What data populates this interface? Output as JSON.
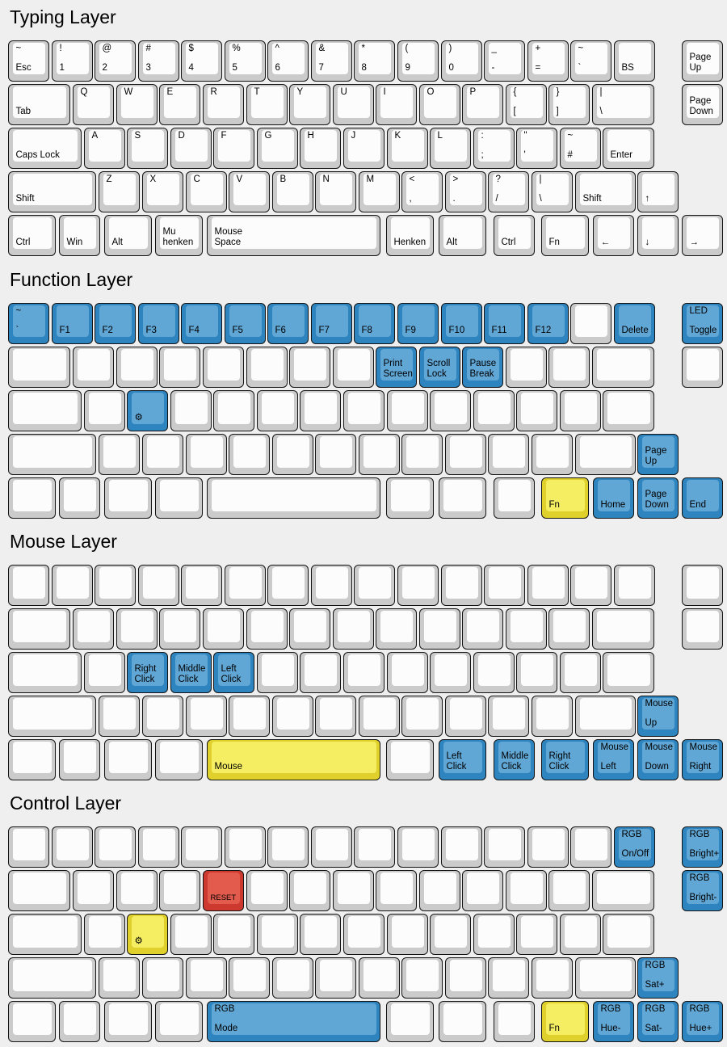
{
  "colors": {
    "blue_base": "#2d84bf",
    "blue_cap": "#61a7d6",
    "yellow_base": "#e0d02c",
    "yellow_cap": "#f5ee63",
    "red_base": "#cd392e",
    "red_cap": "#e25b4d",
    "white_base": "#cbcbcb",
    "white_cap": "#fcfcfc",
    "background": "#efefef",
    "key_border": "#141414",
    "text": "#000000"
  },
  "geometry": [
    [
      [
        0,
        1
      ],
      [
        1,
        1
      ],
      [
        2,
        1
      ],
      [
        3,
        1
      ],
      [
        4,
        1
      ],
      [
        5,
        1
      ],
      [
        6,
        1
      ],
      [
        7,
        1
      ],
      [
        8,
        1
      ],
      [
        9,
        1
      ],
      [
        10,
        1
      ],
      [
        11,
        1
      ],
      [
        12,
        1
      ],
      [
        13,
        1
      ],
      [
        14,
        1
      ],
      [
        15.58,
        1
      ]
    ],
    [
      [
        0,
        1.5
      ],
      [
        1.5,
        1
      ],
      [
        2.5,
        1
      ],
      [
        3.5,
        1
      ],
      [
        4.5,
        1
      ],
      [
        5.5,
        1
      ],
      [
        6.5,
        1
      ],
      [
        7.5,
        1
      ],
      [
        8.5,
        1
      ],
      [
        9.5,
        1
      ],
      [
        10.5,
        1
      ],
      [
        11.5,
        1
      ],
      [
        12.5,
        1
      ],
      [
        13.5,
        1.5
      ],
      [
        15.58,
        1
      ]
    ],
    [
      [
        0,
        1.75
      ],
      [
        1.75,
        1
      ],
      [
        2.75,
        1
      ],
      [
        3.75,
        1
      ],
      [
        4.75,
        1
      ],
      [
        5.75,
        1
      ],
      [
        6.75,
        1
      ],
      [
        7.75,
        1
      ],
      [
        8.75,
        1
      ],
      [
        9.75,
        1
      ],
      [
        10.75,
        1
      ],
      [
        11.75,
        1
      ],
      [
        12.75,
        1
      ],
      [
        13.75,
        1.25
      ]
    ],
    [
      [
        0,
        2.1
      ],
      [
        2.1,
        1
      ],
      [
        3.1,
        1
      ],
      [
        4.1,
        1
      ],
      [
        5.1,
        1
      ],
      [
        6.1,
        1
      ],
      [
        7.1,
        1
      ],
      [
        8.1,
        1
      ],
      [
        9.1,
        1
      ],
      [
        10.1,
        1
      ],
      [
        11.1,
        1
      ],
      [
        12.1,
        1
      ],
      [
        13.1,
        1.45
      ],
      [
        14.55,
        1
      ]
    ],
    [
      [
        0,
        1.15
      ],
      [
        1.18,
        1
      ],
      [
        2.22,
        1.15
      ],
      [
        3.4,
        1.16
      ],
      [
        4.6,
        4.07
      ],
      [
        8.74,
        1.16
      ],
      [
        9.95,
        1.16
      ],
      [
        11.22,
        1
      ],
      [
        12.32,
        1.15
      ],
      [
        13.52,
        1
      ],
      [
        14.55,
        1
      ],
      [
        15.58,
        1
      ]
    ]
  ],
  "layers": [
    {
      "title": "Typing Layer",
      "rows": [
        [
          {
            "t": "~",
            "b": "Esc"
          },
          {
            "t": "!",
            "b": "1"
          },
          {
            "t": "@",
            "b": "2"
          },
          {
            "t": "#",
            "b": "3"
          },
          {
            "t": "$",
            "b": "4"
          },
          {
            "t": "%",
            "b": "5"
          },
          {
            "t": "^",
            "b": "6"
          },
          {
            "t": "&",
            "b": "7"
          },
          {
            "t": "*",
            "b": "8"
          },
          {
            "t": "(",
            "b": "9"
          },
          {
            "t": ")",
            "b": "0"
          },
          {
            "t": "_",
            "b": "-"
          },
          {
            "t": "+",
            "b": "="
          },
          {
            "t": "~",
            "b": "`"
          },
          {
            "b": "BS"
          },
          {
            "b": "Page\nUp"
          }
        ],
        [
          {
            "b": "Tab"
          },
          {
            "t": "Q"
          },
          {
            "t": "W"
          },
          {
            "t": "E"
          },
          {
            "t": "R"
          },
          {
            "t": "T"
          },
          {
            "t": "Y"
          },
          {
            "t": "U"
          },
          {
            "t": "I"
          },
          {
            "t": "O"
          },
          {
            "t": "P"
          },
          {
            "t": "{",
            "b": "["
          },
          {
            "t": "}",
            "b": "]"
          },
          {
            "t": "|",
            "b": "\\"
          },
          {
            "b": "Page\nDown"
          }
        ],
        [
          {
            "b": "Caps Lock"
          },
          {
            "t": "A"
          },
          {
            "t": "S"
          },
          {
            "t": "D"
          },
          {
            "t": "F"
          },
          {
            "t": "G"
          },
          {
            "t": "H"
          },
          {
            "t": "J"
          },
          {
            "t": "K"
          },
          {
            "t": "L"
          },
          {
            "t": ":",
            "b": ";"
          },
          {
            "t": "\"",
            "b": "'"
          },
          {
            "t": "~",
            "b": "#"
          },
          {
            "b": "Enter"
          }
        ],
        [
          {
            "b": "Shift"
          },
          {
            "t": "Z"
          },
          {
            "t": "X"
          },
          {
            "t": "C"
          },
          {
            "t": "V"
          },
          {
            "t": "B"
          },
          {
            "t": "N"
          },
          {
            "t": "M"
          },
          {
            "t": "<",
            "b": ","
          },
          {
            "t": ">",
            "b": "."
          },
          {
            "t": "?",
            "b": "/"
          },
          {
            "t": "|",
            "b": "\\"
          },
          {
            "b": "Shift"
          },
          {
            "b": "↑"
          }
        ],
        [
          {
            "b": "Ctrl"
          },
          {
            "b": "Win"
          },
          {
            "b": "Alt"
          },
          {
            "b": "Mu\nhenken"
          },
          {
            "b": "Mouse\nSpace"
          },
          {
            "b": "Henken"
          },
          {
            "b": "Alt"
          },
          {
            "b": "Ctrl"
          },
          {
            "b": "Fn"
          },
          {
            "b": "←"
          },
          {
            "b": "↓"
          },
          {
            "b": "→"
          }
        ]
      ]
    },
    {
      "title": "Function Layer",
      "rows": [
        [
          {
            "t": "~",
            "b": "`",
            "c": "blue"
          },
          {
            "b": "F1",
            "c": "blue"
          },
          {
            "b": "F2",
            "c": "blue"
          },
          {
            "b": "F3",
            "c": "blue"
          },
          {
            "b": "F4",
            "c": "blue"
          },
          {
            "b": "F5",
            "c": "blue"
          },
          {
            "b": "F6",
            "c": "blue"
          },
          {
            "b": "F7",
            "c": "blue"
          },
          {
            "b": "F8",
            "c": "blue"
          },
          {
            "b": "F9",
            "c": "blue"
          },
          {
            "b": "F10",
            "c": "blue"
          },
          {
            "b": "F11",
            "c": "blue"
          },
          {
            "b": "F12",
            "c": "blue"
          },
          null,
          {
            "b": "Delete",
            "c": "blue"
          },
          {
            "t": "LED",
            "b": "Toggle",
            "c": "blue"
          }
        ],
        [
          null,
          null,
          null,
          null,
          null,
          null,
          null,
          null,
          {
            "b": "Print\nScreen",
            "c": "blue"
          },
          {
            "b": "Scroll\nLock",
            "c": "blue"
          },
          {
            "b": "Pause\nBreak",
            "c": "blue"
          },
          null,
          null,
          null,
          null
        ],
        [
          null,
          null,
          {
            "b": "⚙",
            "c": "blue"
          },
          null,
          null,
          null,
          null,
          null,
          null,
          null,
          null,
          null,
          null,
          null
        ],
        [
          null,
          null,
          null,
          null,
          null,
          null,
          null,
          null,
          null,
          null,
          null,
          null,
          null,
          {
            "b": "Page\nUp",
            "c": "blue"
          }
        ],
        [
          null,
          null,
          null,
          null,
          null,
          null,
          null,
          null,
          {
            "b": "Fn",
            "c": "yellow"
          },
          {
            "b": "Home",
            "c": "blue"
          },
          {
            "b": "Page\nDown",
            "c": "blue"
          },
          {
            "b": "End",
            "c": "blue"
          }
        ]
      ]
    },
    {
      "title": "Mouse Layer",
      "rows": [
        [
          null,
          null,
          null,
          null,
          null,
          null,
          null,
          null,
          null,
          null,
          null,
          null,
          null,
          null,
          null,
          null
        ],
        [
          null,
          null,
          null,
          null,
          null,
          null,
          null,
          null,
          null,
          null,
          null,
          null,
          null,
          null,
          null
        ],
        [
          null,
          null,
          {
            "b": "Right\nClick",
            "c": "blue"
          },
          {
            "b": "Middle\nClick",
            "c": "blue"
          },
          {
            "b": "Left\nClick",
            "c": "blue"
          },
          null,
          null,
          null,
          null,
          null,
          null,
          null,
          null,
          null
        ],
        [
          null,
          null,
          null,
          null,
          null,
          null,
          null,
          null,
          null,
          null,
          null,
          null,
          null,
          {
            "t": "Mouse",
            "b": "Up",
            "c": "blue"
          }
        ],
        [
          null,
          null,
          null,
          null,
          {
            "b": "Mouse",
            "c": "yellow"
          },
          null,
          {
            "b": "Left\nClick",
            "c": "blue"
          },
          {
            "b": "Middle\nClick",
            "c": "blue"
          },
          {
            "b": "Right\nClick",
            "c": "blue"
          },
          {
            "t": "Mouse",
            "b": "Left",
            "c": "blue"
          },
          {
            "t": "Mouse",
            "b": "Down",
            "c": "blue"
          },
          {
            "t": "Mouse",
            "b": "Right",
            "c": "blue"
          }
        ]
      ]
    },
    {
      "title": "Control Layer",
      "rows": [
        [
          null,
          null,
          null,
          null,
          null,
          null,
          null,
          null,
          null,
          null,
          null,
          null,
          null,
          null,
          {
            "t": "RGB",
            "b": "On/Off",
            "c": "blue"
          },
          {
            "t": "RGB",
            "b": "Bright+",
            "c": "blue"
          }
        ],
        [
          null,
          null,
          null,
          null,
          {
            "b": "RESET",
            "c": "red",
            "s": true
          },
          null,
          null,
          null,
          null,
          null,
          null,
          null,
          null,
          null,
          {
            "t": "RGB",
            "b": "Bright-",
            "c": "blue"
          }
        ],
        [
          null,
          null,
          {
            "b": "⚙",
            "c": "yellow"
          },
          null,
          null,
          null,
          null,
          null,
          null,
          null,
          null,
          null,
          null,
          null
        ],
        [
          null,
          null,
          null,
          null,
          null,
          null,
          null,
          null,
          null,
          null,
          null,
          null,
          null,
          {
            "t": "RGB",
            "b": "Sat+",
            "c": "blue"
          }
        ],
        [
          null,
          null,
          null,
          null,
          {
            "t": "RGB",
            "b": "Mode",
            "c": "blue"
          },
          null,
          null,
          null,
          {
            "b": "Fn",
            "c": "yellow"
          },
          {
            "t": "RGB",
            "b": "Hue-",
            "c": "blue"
          },
          {
            "t": "RGB",
            "b": "Sat-",
            "c": "blue"
          },
          {
            "t": "RGB",
            "b": "Hue+",
            "c": "blue"
          }
        ]
      ]
    }
  ]
}
